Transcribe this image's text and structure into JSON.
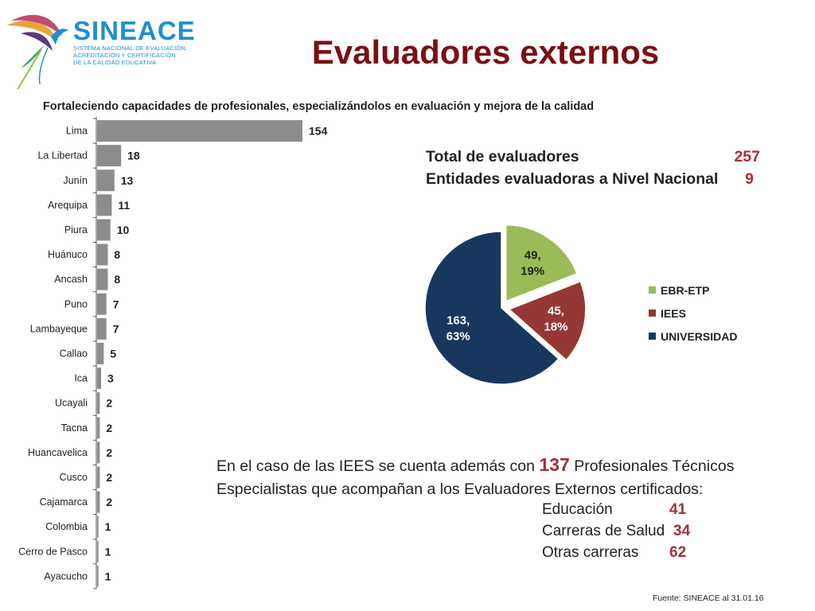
{
  "logo": {
    "name": "SINEACE",
    "lines": [
      "SISTEMA NACIONAL DE EVALUACIÓN,",
      "ACREDITACIÓN Y CERTIFICACIÓN",
      "DE LA CALIDAD EDUCATIVA"
    ]
  },
  "title": "Evaluadores externos",
  "subtitle": "Fortaleciendo capacidades de profesionales, especializándolos en evaluación y mejora de la calidad",
  "totals": {
    "total_label": "Total de evaluadores",
    "total_value": "257",
    "entities_label": "Entidades evaluadoras a Nivel Nacional",
    "entities_value": "9"
  },
  "note": {
    "before": "En el caso de las IEES se cuenta además con ",
    "highlight": "137",
    "after": " Profesionales Técnicos Especialistas que acompañan a los Evaluadores Externos certificados:"
  },
  "details": [
    {
      "label": "Educación",
      "value": "41"
    },
    {
      "label": "Carreras de Salud",
      "value": "34"
    },
    {
      "label": "Otras carreras",
      "value": "62"
    }
  ],
  "source": "Fuente: SINEACE al  31.01.16",
  "colors": {
    "bar": "#8c8c8c",
    "title": "#7b0f14",
    "accent_value": "#a33037",
    "brand_blue": "#1f8fd0"
  },
  "chart_data": [
    {
      "type": "bar",
      "orientation": "horizontal",
      "categories": [
        "Lima",
        "La Libertad",
        "Junín",
        "Arequipa",
        "Piura",
        "Huánuco",
        "Ancash",
        "Puno",
        "Lambayeque",
        "Callao",
        "Ica",
        "Ucayali",
        "Tacna",
        "Huancavelica",
        "Cusco",
        "Cajamarca",
        "Colombia",
        "Cerro de Pasco",
        "Ayacucho"
      ],
      "values": [
        154,
        18,
        13,
        11,
        10,
        8,
        8,
        7,
        7,
        5,
        3,
        2,
        2,
        2,
        2,
        2,
        1,
        1,
        1
      ],
      "color": "#8c8c8c",
      "data_labels": true,
      "xlim": [
        0,
        154
      ]
    },
    {
      "type": "pie",
      "slices": [
        {
          "label": "EBR-ETP",
          "value": 49,
          "percent": "19%",
          "color": "#9bbb59",
          "exploded": true
        },
        {
          "label": "IEES",
          "value": 45,
          "percent": "18%",
          "color": "#953735",
          "exploded": true
        },
        {
          "label": "UNIVERSIDAD",
          "value": 163,
          "percent": "63%",
          "color": "#17375e",
          "exploded": false
        }
      ],
      "legend": [
        "EBR-ETP",
        "IEES",
        "UNIVERSIDAD"
      ],
      "legend_position": "right"
    }
  ]
}
